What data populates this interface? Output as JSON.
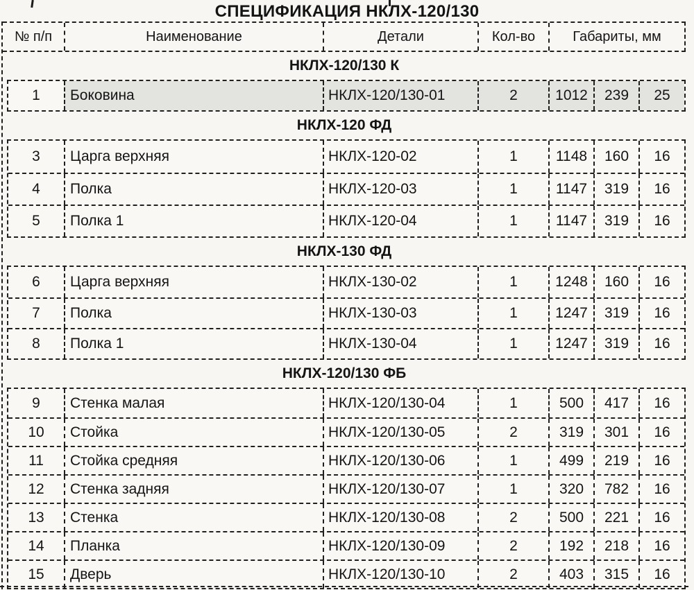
{
  "title": "СПЕЦИФИКАЦИЯ НКЛХ-120/130",
  "colors": {
    "paper": "#f7f6f3",
    "border": "#1f1f1f",
    "text": "#141414",
    "highlight_row_bg": "#e3e3df"
  },
  "table": {
    "headers": [
      "№ п/п",
      "Наименование",
      "Детали",
      "Кол-во",
      "Габариты, мм"
    ],
    "sections": [
      {
        "label": "НКЛХ-120/130 К",
        "rows": [
          {
            "num": "1",
            "name": "Боковина",
            "detail": "НКЛХ-120/130-01",
            "qty": "2",
            "d1": "1012",
            "d2": "239",
            "d3": "25",
            "highlight": true
          }
        ]
      },
      {
        "label": "НКЛХ-120 ФД",
        "rows": [
          {
            "num": "3",
            "name": "Царга верхняя",
            "detail": "НКЛХ-120-02",
            "qty": "1",
            "d1": "1148",
            "d2": "160",
            "d3": "16"
          },
          {
            "num": "4",
            "name": "Полка",
            "detail": "НКЛХ-120-03",
            "qty": "1",
            "d1": "1147",
            "d2": "319",
            "d3": "16"
          },
          {
            "num": "5",
            "name": "Полка 1",
            "detail": "НКЛХ-120-04",
            "qty": "1",
            "d1": "1147",
            "d2": "319",
            "d3": "16"
          }
        ]
      },
      {
        "label": "НКЛХ-130 ФД",
        "rows": [
          {
            "num": "6",
            "name": "Царга верхняя",
            "detail": "НКЛХ-130-02",
            "qty": "1",
            "d1": "1248",
            "d2": "160",
            "d3": "16"
          },
          {
            "num": "7",
            "name": "Полка",
            "detail": "НКЛХ-130-03",
            "qty": "1",
            "d1": "1247",
            "d2": "319",
            "d3": "16"
          },
          {
            "num": "8",
            "name": "Полка 1",
            "detail": "НКЛХ-130-04",
            "qty": "1",
            "d1": "1247",
            "d2": "319",
            "d3": "16"
          }
        ]
      },
      {
        "label": "НКЛХ-120/130 ФБ",
        "rows": [
          {
            "num": "9",
            "name": "Стенка малая",
            "detail": "НКЛХ-120/130-04",
            "qty": "1",
            "d1": "500",
            "d2": "417",
            "d3": "16"
          },
          {
            "num": "10",
            "name": "Стойка",
            "detail": "НКЛХ-120/130-05",
            "qty": "2",
            "d1": "319",
            "d2": "301",
            "d3": "16"
          },
          {
            "num": "11",
            "name": "Стойка средняя",
            "detail": "НКЛХ-120/130-06",
            "qty": "1",
            "d1": "499",
            "d2": "219",
            "d3": "16"
          },
          {
            "num": "12",
            "name": "Стенка задняя",
            "detail": "НКЛХ-120/130-07",
            "qty": "1",
            "d1": "320",
            "d2": "782",
            "d3": "16"
          },
          {
            "num": "13",
            "name": "Стенка",
            "detail": "НКЛХ-120/130-08",
            "qty": "2",
            "d1": "500",
            "d2": "221",
            "d3": "16"
          },
          {
            "num": "14",
            "name": "Планка",
            "detail": "НКЛХ-120/130-09",
            "qty": "2",
            "d1": "192",
            "d2": "218",
            "d3": "16"
          },
          {
            "num": "15",
            "name": "Дверь",
            "detail": "НКЛХ-120/130-10",
            "qty": "2",
            "d1": "403",
            "d2": "315",
            "d3": "16"
          }
        ]
      }
    ]
  }
}
